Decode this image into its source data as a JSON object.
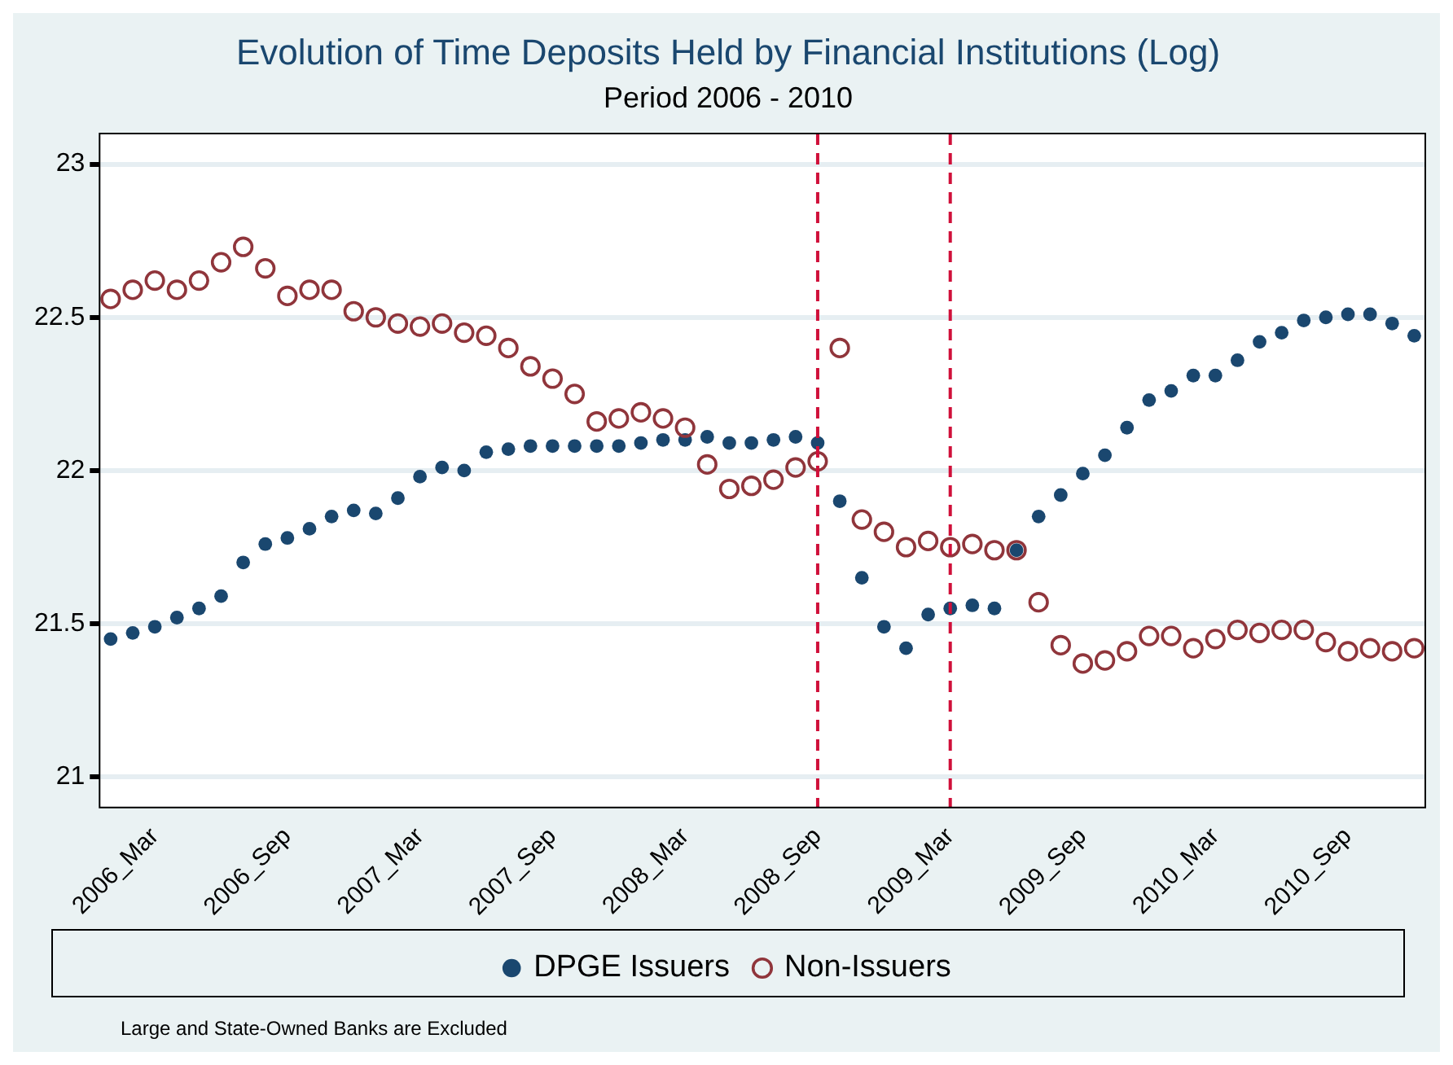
{
  "chart_data": {
    "type": "scatter",
    "title": "Evolution of Time Deposits Held by Financial Institutions (Log)",
    "subtitle": "Period 2006 - 2010",
    "categories": [
      null,
      null,
      "2006_Mar",
      null,
      null,
      null,
      null,
      null,
      "2006_Sep",
      null,
      null,
      null,
      null,
      null,
      "2007_Mar",
      null,
      null,
      null,
      null,
      null,
      "2007_Sep",
      null,
      null,
      null,
      null,
      null,
      "2008_Mar",
      null,
      null,
      null,
      null,
      null,
      "2008_Sep",
      null,
      null,
      null,
      null,
      null,
      "2009_Mar",
      null,
      null,
      null,
      null,
      null,
      "2009_Sep",
      null,
      null,
      null,
      null,
      null,
      "2010_Mar",
      null,
      null,
      null,
      null,
      null,
      "2010_Sep",
      null,
      null,
      null
    ],
    "series": [
      {
        "name": "DPGE Issuers",
        "color": "#1a476f",
        "marker": "circle",
        "values": [
          21.45,
          21.47,
          21.49,
          21.52,
          21.55,
          21.59,
          21.7,
          21.76,
          21.78,
          21.81,
          21.85,
          21.87,
          21.86,
          21.91,
          21.98,
          22.01,
          22.0,
          22.06,
          22.07,
          22.08,
          22.08,
          22.08,
          22.08,
          22.08,
          22.09,
          22.1,
          22.1,
          22.11,
          22.09,
          22.09,
          22.1,
          22.11,
          22.09,
          21.9,
          21.65,
          21.49,
          21.42,
          21.53,
          21.55,
          21.56,
          21.55,
          21.74,
          21.85,
          21.92,
          21.99,
          22.05,
          22.14,
          22.23,
          22.26,
          22.31,
          22.31,
          22.36,
          22.42,
          22.45,
          22.49,
          22.5,
          22.51,
          22.51,
          22.48,
          22.44
        ]
      },
      {
        "name": "Non-Issuers",
        "color": "#90353b",
        "marker": "circle",
        "values": [
          22.56,
          22.59,
          22.62,
          22.59,
          22.62,
          22.68,
          22.73,
          22.66,
          22.57,
          22.59,
          22.59,
          22.52,
          22.5,
          22.48,
          22.47,
          22.48,
          22.45,
          22.44,
          22.4,
          22.34,
          22.3,
          22.25,
          22.16,
          22.17,
          22.19,
          22.17,
          22.14,
          22.02,
          21.94,
          21.95,
          21.97,
          22.01,
          22.03,
          22.4,
          21.84,
          21.8,
          21.75,
          21.77,
          21.75,
          21.76,
          21.74,
          21.74,
          21.57,
          21.43,
          21.37,
          21.38,
          21.41,
          21.46,
          21.46,
          21.42,
          21.45,
          21.48,
          21.47,
          21.48,
          21.48,
          21.44,
          21.41,
          21.42,
          21.41,
          21.42
        ]
      }
    ],
    "ylim": [
      20.9,
      23.1
    ],
    "yticks": [
      21,
      21.5,
      22,
      22.5,
      23
    ],
    "grid": "y",
    "legend": "bottom",
    "ref_lines": [
      {
        "axis": "x",
        "value": "2008_Sep",
        "color": "#d0103a",
        "line_style": "dashed"
      },
      {
        "axis": "x",
        "value": "2009_Mar",
        "color": "#d0103a",
        "line_style": "dashed"
      }
    ],
    "annotations": [
      "Large and State-Owned Banks are Excluded"
    ]
  }
}
